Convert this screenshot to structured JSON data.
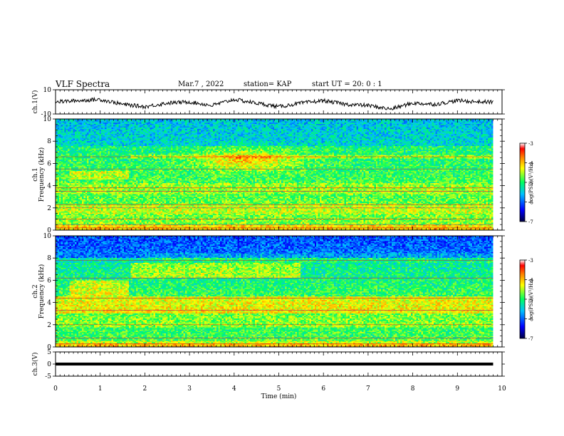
{
  "header": {
    "title": "VLF Spectra",
    "date": "Mar.7 , 2022",
    "station": "station= KAP",
    "start": "start UT = 20: 0 : 1"
  },
  "colors": {
    "axes": "#000000",
    "waveform": "#000000",
    "colormap": [
      "#000040",
      "#0000ff",
      "#00c0ff",
      "#00ff80",
      "#ffff00",
      "#ff8000",
      "#ff0000",
      "#ffffff"
    ]
  },
  "chart_data": [
    {
      "type": "line",
      "panel": "ch1-waveform",
      "xlabel": "",
      "ylabel": "ch.1(V)",
      "ylim": [
        -10,
        10
      ],
      "yticks": [
        "10",
        "-10"
      ],
      "xlim": [
        0,
        10
      ],
      "x": [
        0,
        0.5,
        1,
        1.5,
        2,
        2.5,
        3,
        3.5,
        4,
        4.5,
        5,
        5.5,
        6,
        6.5,
        7,
        7.5,
        8,
        8.5,
        9,
        9.5,
        9.8
      ],
      "values": [
        0,
        1,
        2,
        -2,
        -4,
        -1,
        0,
        -3,
        2,
        -1,
        -4,
        -1,
        1,
        -2,
        -3,
        -6,
        -1,
        -2,
        1,
        0,
        0
      ]
    },
    {
      "type": "heatmap",
      "panel": "ch1-spectrogram",
      "ylabel_line1": "ch.1",
      "ylabel_line2": "Frequency (kHz)",
      "ylim": [
        0,
        10
      ],
      "yticks": [
        "0",
        "2",
        "4",
        "6",
        "8",
        "10"
      ],
      "xlim": [
        0,
        10
      ],
      "colorbar": {
        "label": "log(PSD)(V²/Hz)",
        "range": [
          -7,
          -3
        ],
        "ticks": [
          "-3",
          "-4",
          "-5",
          "-6",
          "-7"
        ]
      },
      "data_extent_min": 9.8,
      "features": [
        "intense emission 4–7 kHz between 3 and 5.5 min",
        "narrow-band lines near 0.5, 2, 3.5, 5.5, 6.5 kHz"
      ]
    },
    {
      "type": "heatmap",
      "panel": "ch2-spectrogram",
      "ylabel_line1": "ch.2",
      "ylabel_line2": "Frequency (kHz)",
      "ylim": [
        0,
        10
      ],
      "yticks": [
        "0",
        "2",
        "4",
        "6",
        "8",
        "10"
      ],
      "xlim": [
        0,
        10
      ],
      "colorbar": {
        "label": "log(PSD)(V²/Hz)",
        "range": [
          -7,
          -3
        ],
        "ticks": [
          "-3",
          "-4",
          "-5",
          "-6",
          "-7"
        ]
      },
      "data_extent_min": 9.8,
      "features": [
        "intense emission 6–8 kHz between 2 and 5 min",
        "low intensity above 8 kHz"
      ]
    },
    {
      "type": "line",
      "panel": "ch3-waveform",
      "ylabel": "ch.3(V)",
      "ylim": [
        -5,
        5
      ],
      "yticks": [
        "5",
        "0",
        "-5"
      ],
      "xlim": [
        0,
        10
      ],
      "x": [
        0,
        9.8
      ],
      "values": [
        0,
        0
      ]
    }
  ],
  "xaxis": {
    "label": "Time (min)",
    "ticks": [
      "0",
      "1",
      "2",
      "3",
      "4",
      "5",
      "6",
      "7",
      "8",
      "9",
      "10"
    ]
  }
}
